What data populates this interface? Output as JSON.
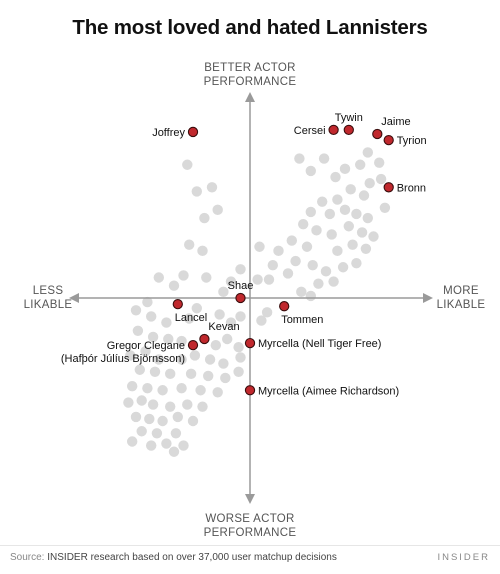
{
  "title": "The most loved and hated Lannisters",
  "chart_data": {
    "type": "scatter",
    "title": "The most loved and hated Lannisters",
    "xlim": [
      -10,
      10
    ],
    "ylim": [
      -10,
      10
    ],
    "axis_labels": {
      "top": [
        "BETTER ACTOR",
        "PERFORMANCE"
      ],
      "bottom": [
        "WORSE ACTOR",
        "PERFORMANCE"
      ],
      "left": [
        "LESS",
        "LIKABLE"
      ],
      "right": [
        "MORE",
        "LIKABLE"
      ]
    },
    "highlight_color": "#c0282d",
    "background_point_color": "#d9d9d9",
    "highlighted": [
      {
        "label": [
          "Joffrey"
        ],
        "x": -3.0,
        "y": 8.1,
        "label_pos": "left"
      },
      {
        "label": [
          "Cersei"
        ],
        "x": 4.4,
        "y": 8.2,
        "label_pos": "left"
      },
      {
        "label": [
          "Tywin"
        ],
        "x": 5.2,
        "y": 8.2,
        "label_pos": "top"
      },
      {
        "label": [
          "Jaime"
        ],
        "x": 6.7,
        "y": 8.0,
        "label_pos": "top-right"
      },
      {
        "label": [
          "Tyrion"
        ],
        "x": 7.3,
        "y": 7.7,
        "label_pos": "right"
      },
      {
        "label": [
          "Bronn"
        ],
        "x": 7.3,
        "y": 5.4,
        "label_pos": "right"
      },
      {
        "label": [
          "Shae"
        ],
        "x": -0.5,
        "y": 0.0,
        "label_pos": "top"
      },
      {
        "label": [
          "Lancel"
        ],
        "x": -3.8,
        "y": -0.3,
        "label_pos": "bottom-right"
      },
      {
        "label": [
          "Tommen"
        ],
        "x": 1.8,
        "y": -0.4,
        "label_pos": "bottom-right"
      },
      {
        "label": [
          "Kevan"
        ],
        "x": -2.4,
        "y": -2.0,
        "label_pos": "top-right"
      },
      {
        "label": [
          "Gregor Clegane",
          "(Hafþór Júlíus Björnsson)"
        ],
        "x": -3.0,
        "y": -2.3,
        "label_pos": "left"
      },
      {
        "label": [
          "Myrcella (Nell Tiger Free)"
        ],
        "x": 0.0,
        "y": -2.2,
        "label_pos": "right"
      },
      {
        "label": [
          "Myrcella (Aimee Richardson)"
        ],
        "x": 0.0,
        "y": -4.5,
        "label_pos": "right"
      }
    ],
    "background_points": [
      [
        2.6,
        6.8
      ],
      [
        3.2,
        6.2
      ],
      [
        3.9,
        6.8
      ],
      [
        4.5,
        5.9
      ],
      [
        5.0,
        6.3
      ],
      [
        5.8,
        6.5
      ],
      [
        6.2,
        7.1
      ],
      [
        6.8,
        6.6
      ],
      [
        6.3,
        5.6
      ],
      [
        6.9,
        5.8
      ],
      [
        5.3,
        5.3
      ],
      [
        6.0,
        5.0
      ],
      [
        4.6,
        4.8
      ],
      [
        3.8,
        4.7
      ],
      [
        3.2,
        4.2
      ],
      [
        4.2,
        4.1
      ],
      [
        5.0,
        4.3
      ],
      [
        5.6,
        4.1
      ],
      [
        6.2,
        3.9
      ],
      [
        7.1,
        4.4
      ],
      [
        2.8,
        3.6
      ],
      [
        3.5,
        3.3
      ],
      [
        4.3,
        3.1
      ],
      [
        5.2,
        3.5
      ],
      [
        5.9,
        3.2
      ],
      [
        6.5,
        3.0
      ],
      [
        2.2,
        2.8
      ],
      [
        3.0,
        2.5
      ],
      [
        4.6,
        2.3
      ],
      [
        5.4,
        2.6
      ],
      [
        6.1,
        2.4
      ],
      [
        1.5,
        2.3
      ],
      [
        2.4,
        1.8
      ],
      [
        3.3,
        1.6
      ],
      [
        4.0,
        1.3
      ],
      [
        4.9,
        1.5
      ],
      [
        5.6,
        1.7
      ],
      [
        0.5,
        2.5
      ],
      [
        1.2,
        1.6
      ],
      [
        2.0,
        1.2
      ],
      [
        1.0,
        0.9
      ],
      [
        3.6,
        0.7
      ],
      [
        4.4,
        0.8
      ],
      [
        2.7,
        0.3
      ],
      [
        3.2,
        0.1
      ],
      [
        0.4,
        0.9
      ],
      [
        -0.5,
        1.4
      ],
      [
        -1.0,
        0.8
      ],
      [
        -1.4,
        0.3
      ],
      [
        -3.3,
        6.5
      ],
      [
        -2.0,
        5.4
      ],
      [
        -2.8,
        5.2
      ],
      [
        -2.4,
        3.9
      ],
      [
        -1.7,
        4.3
      ],
      [
        -3.2,
        2.6
      ],
      [
        -2.5,
        2.3
      ],
      [
        -4.8,
        1.0
      ],
      [
        -3.5,
        1.1
      ],
      [
        -4.0,
        0.6
      ],
      [
        -2.3,
        1.0
      ],
      [
        -5.4,
        -0.2
      ],
      [
        -6.0,
        -0.6
      ],
      [
        -5.2,
        -0.9
      ],
      [
        -4.4,
        -1.2
      ],
      [
        -3.2,
        -1.0
      ],
      [
        -2.8,
        -0.5
      ],
      [
        -1.6,
        -0.8
      ],
      [
        -1.0,
        -1.2
      ],
      [
        -0.5,
        -0.9
      ],
      [
        0.6,
        -1.1
      ],
      [
        0.9,
        -0.7
      ],
      [
        -5.9,
        -1.6
      ],
      [
        -5.1,
        -1.9
      ],
      [
        -4.3,
        -2.0
      ],
      [
        -3.6,
        -2.1
      ],
      [
        -1.8,
        -2.3
      ],
      [
        -1.2,
        -2.0
      ],
      [
        -0.6,
        -2.4
      ],
      [
        -6.3,
        -2.8
      ],
      [
        -5.5,
        -2.6
      ],
      [
        -4.8,
        -3.0
      ],
      [
        -3.6,
        -3.0
      ],
      [
        -2.9,
        -2.8
      ],
      [
        -2.1,
        -3.0
      ],
      [
        -1.4,
        -3.2
      ],
      [
        -0.5,
        -2.9
      ],
      [
        -5.8,
        -3.5
      ],
      [
        -5.0,
        -3.6
      ],
      [
        -4.2,
        -3.7
      ],
      [
        -3.1,
        -3.7
      ],
      [
        -2.2,
        -3.8
      ],
      [
        -1.3,
        -3.9
      ],
      [
        -0.6,
        -3.6
      ],
      [
        -6.2,
        -4.3
      ],
      [
        -5.4,
        -4.4
      ],
      [
        -4.6,
        -4.5
      ],
      [
        -3.6,
        -4.4
      ],
      [
        -2.6,
        -4.5
      ],
      [
        -1.7,
        -4.6
      ],
      [
        -6.4,
        -5.1
      ],
      [
        -5.7,
        -5.0
      ],
      [
        -5.1,
        -5.2
      ],
      [
        -4.2,
        -5.3
      ],
      [
        -3.3,
        -5.2
      ],
      [
        -2.5,
        -5.3
      ],
      [
        -6.0,
        -5.8
      ],
      [
        -5.3,
        -5.9
      ],
      [
        -4.6,
        -6.0
      ],
      [
        -3.8,
        -5.8
      ],
      [
        -3.0,
        -6.0
      ],
      [
        -5.7,
        -6.5
      ],
      [
        -4.9,
        -6.6
      ],
      [
        -3.9,
        -6.6
      ],
      [
        -5.2,
        -7.2
      ],
      [
        -4.4,
        -7.1
      ],
      [
        -3.5,
        -7.2
      ],
      [
        -6.2,
        -7.0
      ],
      [
        -4.0,
        -7.5
      ]
    ]
  },
  "footer": {
    "source_label": "Source:",
    "source_text": "INSIDER research based on over 37,000 user matchup decisions",
    "brand": "INSIDER"
  }
}
